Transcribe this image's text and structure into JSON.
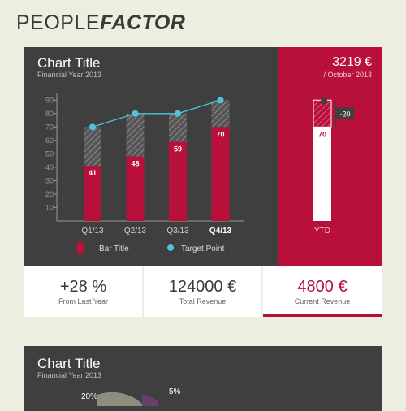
{
  "brand": {
    "light": "PEOPLE",
    "bold": "FACTOR"
  },
  "panel1": {
    "title": "Chart Title",
    "subtitle": "Financial Year 2013"
  },
  "ytd": {
    "value": "3219 €",
    "period": "/ October 2013",
    "label": "YTD",
    "bar_value": 70,
    "delta": "-20",
    "total": 90
  },
  "kpis": [
    {
      "value": "+28 %",
      "label": "From Last Year"
    },
    {
      "value": "124000 €",
      "label": "Total Revenue"
    },
    {
      "value": "4800 €",
      "label": "Current Revenue"
    }
  ],
  "panel2": {
    "title": "Chart Title",
    "subtitle": "Financial Year 2013",
    "labels": [
      "20%",
      "5%"
    ]
  },
  "colors": {
    "accent": "#b8103a",
    "dark": "#3f3f40",
    "target": "#4ec3e0",
    "background": "#eceee0"
  },
  "chart_data": [
    {
      "type": "bar",
      "categories": [
        "Q1/13",
        "Q2/13",
        "Q3/13",
        "Q4/13"
      ],
      "highlight_category": "Q4/13",
      "series": [
        {
          "name": "Bar Title",
          "values": [
            41,
            48,
            59,
            70
          ]
        },
        {
          "name": "Target Point",
          "values": [
            70,
            80,
            80,
            90
          ]
        }
      ],
      "stack_totals": [
        70,
        80,
        80,
        90
      ],
      "y_ticks": [
        10,
        20,
        30,
        40,
        50,
        60,
        70,
        80,
        90
      ],
      "ylim": [
        0,
        95
      ],
      "legend": [
        "Bar Title",
        "Target Point"
      ]
    },
    {
      "type": "pie",
      "labels": [
        "20%",
        "5%"
      ],
      "values": [
        20,
        5
      ]
    }
  ]
}
